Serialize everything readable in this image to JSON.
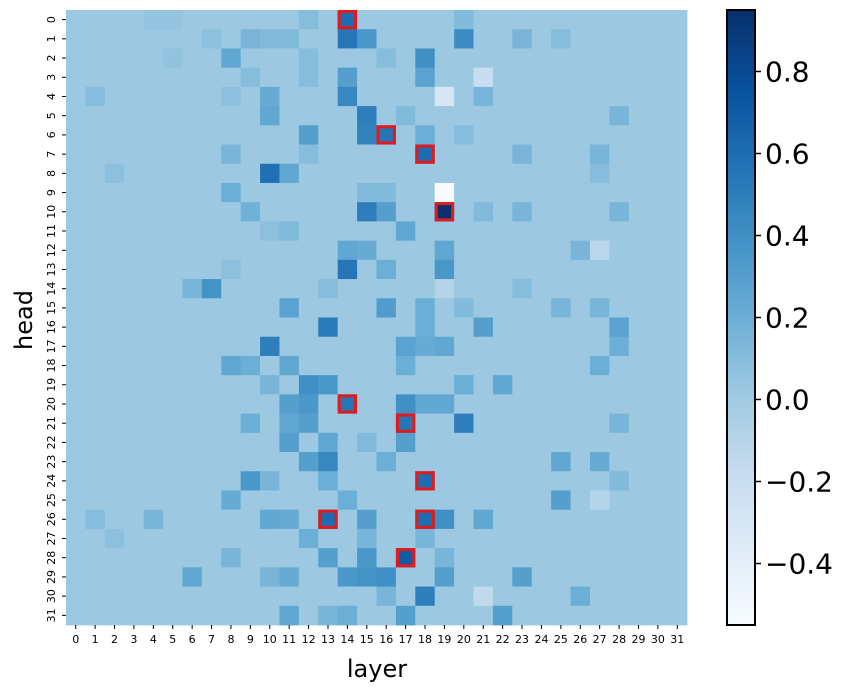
{
  "chart_data": {
    "type": "heatmap",
    "xlabel": "layer",
    "ylabel": "head",
    "x_categories": [
      "0",
      "1",
      "2",
      "3",
      "4",
      "5",
      "6",
      "7",
      "8",
      "9",
      "10",
      "11",
      "12",
      "13",
      "14",
      "15",
      "16",
      "17",
      "18",
      "19",
      "20",
      "21",
      "22",
      "23",
      "24",
      "25",
      "26",
      "27",
      "28",
      "29",
      "30",
      "31"
    ],
    "y_categories": [
      "0",
      "1",
      "2",
      "3",
      "4",
      "5",
      "6",
      "7",
      "8",
      "9",
      "10",
      "11",
      "12",
      "13",
      "14",
      "15",
      "16",
      "17",
      "18",
      "19",
      "20",
      "21",
      "22",
      "23",
      "24",
      "25",
      "26",
      "27",
      "28",
      "29",
      "30",
      "31"
    ],
    "colormap": "Blues",
    "vmin": -0.55,
    "vmax": 0.95,
    "colorbar_ticks": [
      0.8,
      0.6,
      0.4,
      0.2,
      0.0,
      -0.2,
      -0.4
    ],
    "colorbar_tick_labels": [
      "0.8",
      "0.6",
      "0.4",
      "0.2",
      "0.0",
      "−0.2",
      "−0.4"
    ],
    "background_value": 0.02,
    "values": [
      {
        "head": 0,
        "layer": 14,
        "value": 0.6
      },
      {
        "head": 0,
        "layer": 4,
        "value": 0.05
      },
      {
        "head": 0,
        "layer": 5,
        "value": 0.05
      },
      {
        "head": 0,
        "layer": 12,
        "value": 0.1
      },
      {
        "head": 0,
        "layer": 20,
        "value": 0.12
      },
      {
        "head": 1,
        "layer": 14,
        "value": 0.55
      },
      {
        "head": 1,
        "layer": 15,
        "value": 0.35
      },
      {
        "head": 1,
        "layer": 9,
        "value": 0.15
      },
      {
        "head": 1,
        "layer": 10,
        "value": 0.12
      },
      {
        "head": 1,
        "layer": 11,
        "value": 0.12
      },
      {
        "head": 1,
        "layer": 7,
        "value": 0.08
      },
      {
        "head": 1,
        "layer": 20,
        "value": 0.42
      },
      {
        "head": 1,
        "layer": 23,
        "value": 0.15
      },
      {
        "head": 1,
        "layer": 25,
        "value": 0.1
      },
      {
        "head": 2,
        "layer": 8,
        "value": 0.25
      },
      {
        "head": 2,
        "layer": 18,
        "value": 0.4
      },
      {
        "head": 2,
        "layer": 12,
        "value": 0.1
      },
      {
        "head": 2,
        "layer": 16,
        "value": 0.1
      },
      {
        "head": 2,
        "layer": 5,
        "value": 0.06
      },
      {
        "head": 3,
        "layer": 14,
        "value": 0.3
      },
      {
        "head": 3,
        "layer": 18,
        "value": 0.28
      },
      {
        "head": 3,
        "layer": 21,
        "value": -0.2
      },
      {
        "head": 3,
        "layer": 9,
        "value": 0.1
      },
      {
        "head": 3,
        "layer": 12,
        "value": 0.1
      },
      {
        "head": 4,
        "layer": 14,
        "value": 0.45
      },
      {
        "head": 4,
        "layer": 19,
        "value": -0.3
      },
      {
        "head": 4,
        "layer": 10,
        "value": 0.22
      },
      {
        "head": 4,
        "layer": 21,
        "value": 0.15
      },
      {
        "head": 4,
        "layer": 1,
        "value": 0.1
      },
      {
        "head": 4,
        "layer": 8,
        "value": 0.08
      },
      {
        "head": 5,
        "layer": 15,
        "value": 0.5
      },
      {
        "head": 5,
        "layer": 10,
        "value": 0.25
      },
      {
        "head": 5,
        "layer": 17,
        "value": 0.12
      },
      {
        "head": 5,
        "layer": 28,
        "value": 0.15
      },
      {
        "head": 6,
        "layer": 16,
        "value": 0.55
      },
      {
        "head": 6,
        "layer": 15,
        "value": 0.48
      },
      {
        "head": 6,
        "layer": 12,
        "value": 0.3
      },
      {
        "head": 6,
        "layer": 18,
        "value": 0.2
      },
      {
        "head": 6,
        "layer": 20,
        "value": 0.1
      },
      {
        "head": 7,
        "layer": 18,
        "value": 0.6
      },
      {
        "head": 7,
        "layer": 8,
        "value": 0.15
      },
      {
        "head": 7,
        "layer": 23,
        "value": 0.15
      },
      {
        "head": 7,
        "layer": 27,
        "value": 0.15
      },
      {
        "head": 7,
        "layer": 12,
        "value": 0.1
      },
      {
        "head": 8,
        "layer": 10,
        "value": 0.58
      },
      {
        "head": 8,
        "layer": 11,
        "value": 0.25
      },
      {
        "head": 8,
        "layer": 27,
        "value": 0.1
      },
      {
        "head": 8,
        "layer": 2,
        "value": 0.08
      },
      {
        "head": 9,
        "layer": 19,
        "value": -0.55
      },
      {
        "head": 9,
        "layer": 8,
        "value": 0.2
      },
      {
        "head": 9,
        "layer": 15,
        "value": 0.12
      },
      {
        "head": 9,
        "layer": 16,
        "value": 0.12
      },
      {
        "head": 10,
        "layer": 19,
        "value": 0.95
      },
      {
        "head": 10,
        "layer": 15,
        "value": 0.5
      },
      {
        "head": 10,
        "layer": 16,
        "value": 0.3
      },
      {
        "head": 10,
        "layer": 9,
        "value": 0.18
      },
      {
        "head": 10,
        "layer": 23,
        "value": 0.15
      },
      {
        "head": 10,
        "layer": 28,
        "value": 0.15
      },
      {
        "head": 10,
        "layer": 21,
        "value": 0.12
      },
      {
        "head": 11,
        "layer": 17,
        "value": 0.25
      },
      {
        "head": 11,
        "layer": 11,
        "value": 0.12
      },
      {
        "head": 11,
        "layer": 10,
        "value": 0.08
      },
      {
        "head": 12,
        "layer": 14,
        "value": 0.25
      },
      {
        "head": 12,
        "layer": 15,
        "value": 0.22
      },
      {
        "head": 12,
        "layer": 19,
        "value": 0.25
      },
      {
        "head": 12,
        "layer": 26,
        "value": 0.15
      },
      {
        "head": 12,
        "layer": 27,
        "value": -0.12
      },
      {
        "head": 13,
        "layer": 14,
        "value": 0.55
      },
      {
        "head": 13,
        "layer": 16,
        "value": 0.2
      },
      {
        "head": 13,
        "layer": 19,
        "value": 0.35
      },
      {
        "head": 13,
        "layer": 8,
        "value": 0.08
      },
      {
        "head": 14,
        "layer": 7,
        "value": 0.38
      },
      {
        "head": 14,
        "layer": 6,
        "value": 0.15
      },
      {
        "head": 14,
        "layer": 19,
        "value": -0.1
      },
      {
        "head": 14,
        "layer": 13,
        "value": 0.1
      },
      {
        "head": 14,
        "layer": 23,
        "value": 0.1
      },
      {
        "head": 15,
        "layer": 11,
        "value": 0.28
      },
      {
        "head": 15,
        "layer": 16,
        "value": 0.32
      },
      {
        "head": 15,
        "layer": 18,
        "value": 0.2
      },
      {
        "head": 15,
        "layer": 25,
        "value": 0.15
      },
      {
        "head": 15,
        "layer": 27,
        "value": 0.15
      },
      {
        "head": 15,
        "layer": 20,
        "value": 0.12
      },
      {
        "head": 16,
        "layer": 13,
        "value": 0.52
      },
      {
        "head": 16,
        "layer": 21,
        "value": 0.3
      },
      {
        "head": 16,
        "layer": 28,
        "value": 0.28
      },
      {
        "head": 16,
        "layer": 18,
        "value": 0.2
      },
      {
        "head": 17,
        "layer": 10,
        "value": 0.5
      },
      {
        "head": 17,
        "layer": 17,
        "value": 0.28
      },
      {
        "head": 17,
        "layer": 18,
        "value": 0.22
      },
      {
        "head": 17,
        "layer": 19,
        "value": 0.25
      },
      {
        "head": 17,
        "layer": 28,
        "value": 0.2
      },
      {
        "head": 18,
        "layer": 8,
        "value": 0.25
      },
      {
        "head": 18,
        "layer": 9,
        "value": 0.2
      },
      {
        "head": 18,
        "layer": 11,
        "value": 0.25
      },
      {
        "head": 18,
        "layer": 17,
        "value": 0.2
      },
      {
        "head": 18,
        "layer": 27,
        "value": 0.2
      },
      {
        "head": 19,
        "layer": 12,
        "value": 0.4
      },
      {
        "head": 19,
        "layer": 13,
        "value": 0.35
      },
      {
        "head": 19,
        "layer": 20,
        "value": 0.2
      },
      {
        "head": 19,
        "layer": 22,
        "value": 0.25
      },
      {
        "head": 19,
        "layer": 10,
        "value": 0.15
      },
      {
        "head": 20,
        "layer": 14,
        "value": 0.55
      },
      {
        "head": 20,
        "layer": 12,
        "value": 0.35
      },
      {
        "head": 20,
        "layer": 11,
        "value": 0.3
      },
      {
        "head": 20,
        "layer": 17,
        "value": 0.4
      },
      {
        "head": 20,
        "layer": 18,
        "value": 0.25
      },
      {
        "head": 20,
        "layer": 19,
        "value": 0.25
      },
      {
        "head": 21,
        "layer": 17,
        "value": 0.55
      },
      {
        "head": 21,
        "layer": 20,
        "value": 0.5
      },
      {
        "head": 21,
        "layer": 12,
        "value": 0.3
      },
      {
        "head": 21,
        "layer": 11,
        "value": 0.25
      },
      {
        "head": 21,
        "layer": 9,
        "value": 0.2
      },
      {
        "head": 21,
        "layer": 28,
        "value": 0.15
      },
      {
        "head": 22,
        "layer": 11,
        "value": 0.3
      },
      {
        "head": 22,
        "layer": 13,
        "value": 0.25
      },
      {
        "head": 22,
        "layer": 17,
        "value": 0.3
      },
      {
        "head": 22,
        "layer": 15,
        "value": 0.12
      },
      {
        "head": 23,
        "layer": 13,
        "value": 0.45
      },
      {
        "head": 23,
        "layer": 12,
        "value": 0.3
      },
      {
        "head": 23,
        "layer": 16,
        "value": 0.2
      },
      {
        "head": 23,
        "layer": 25,
        "value": 0.25
      },
      {
        "head": 23,
        "layer": 27,
        "value": 0.22
      },
      {
        "head": 24,
        "layer": 18,
        "value": 0.6
      },
      {
        "head": 24,
        "layer": 9,
        "value": 0.35
      },
      {
        "head": 24,
        "layer": 13,
        "value": 0.2
      },
      {
        "head": 24,
        "layer": 10,
        "value": 0.15
      },
      {
        "head": 24,
        "layer": 28,
        "value": 0.12
      },
      {
        "head": 25,
        "layer": 8,
        "value": 0.22
      },
      {
        "head": 25,
        "layer": 14,
        "value": 0.2
      },
      {
        "head": 25,
        "layer": 25,
        "value": 0.3
      },
      {
        "head": 25,
        "layer": 27,
        "value": -0.1
      },
      {
        "head": 26,
        "layer": 13,
        "value": 0.6
      },
      {
        "head": 26,
        "layer": 18,
        "value": 0.6
      },
      {
        "head": 26,
        "layer": 19,
        "value": 0.4
      },
      {
        "head": 26,
        "layer": 15,
        "value": 0.3
      },
      {
        "head": 26,
        "layer": 10,
        "value": 0.25
      },
      {
        "head": 26,
        "layer": 11,
        "value": 0.22
      },
      {
        "head": 26,
        "layer": 21,
        "value": 0.25
      },
      {
        "head": 26,
        "layer": 4,
        "value": 0.15
      },
      {
        "head": 26,
        "layer": 1,
        "value": 0.1
      },
      {
        "head": 27,
        "layer": 12,
        "value": 0.2
      },
      {
        "head": 27,
        "layer": 15,
        "value": 0.15
      },
      {
        "head": 27,
        "layer": 18,
        "value": 0.15
      },
      {
        "head": 27,
        "layer": 2,
        "value": 0.08
      },
      {
        "head": 28,
        "layer": 17,
        "value": 0.7
      },
      {
        "head": 28,
        "layer": 13,
        "value": 0.3
      },
      {
        "head": 28,
        "layer": 15,
        "value": 0.35
      },
      {
        "head": 28,
        "layer": 8,
        "value": 0.15
      },
      {
        "head": 28,
        "layer": 19,
        "value": 0.15
      },
      {
        "head": 29,
        "layer": 14,
        "value": 0.35
      },
      {
        "head": 29,
        "layer": 15,
        "value": 0.38
      },
      {
        "head": 29,
        "layer": 16,
        "value": 0.4
      },
      {
        "head": 29,
        "layer": 6,
        "value": 0.25
      },
      {
        "head": 29,
        "layer": 11,
        "value": 0.22
      },
      {
        "head": 29,
        "layer": 19,
        "value": 0.3
      },
      {
        "head": 29,
        "layer": 23,
        "value": 0.3
      },
      {
        "head": 29,
        "layer": 10,
        "value": 0.15
      },
      {
        "head": 30,
        "layer": 18,
        "value": 0.5
      },
      {
        "head": 30,
        "layer": 21,
        "value": -0.15
      },
      {
        "head": 30,
        "layer": 26,
        "value": 0.2
      },
      {
        "head": 30,
        "layer": 16,
        "value": 0.15
      },
      {
        "head": 31,
        "layer": 11,
        "value": 0.25
      },
      {
        "head": 31,
        "layer": 17,
        "value": 0.3
      },
      {
        "head": 31,
        "layer": 22,
        "value": 0.3
      },
      {
        "head": 31,
        "layer": 14,
        "value": 0.2
      },
      {
        "head": 31,
        "layer": 13,
        "value": 0.15
      }
    ],
    "highlighted_cells": [
      {
        "head": 0,
        "layer": 14
      },
      {
        "head": 6,
        "layer": 16
      },
      {
        "head": 7,
        "layer": 18
      },
      {
        "head": 10,
        "layer": 19
      },
      {
        "head": 20,
        "layer": 14
      },
      {
        "head": 21,
        "layer": 17
      },
      {
        "head": 24,
        "layer": 18
      },
      {
        "head": 26,
        "layer": 13
      },
      {
        "head": 26,
        "layer": 18
      },
      {
        "head": 28,
        "layer": 17
      }
    ],
    "highlight_color": "#e31a1c",
    "grid": false
  }
}
